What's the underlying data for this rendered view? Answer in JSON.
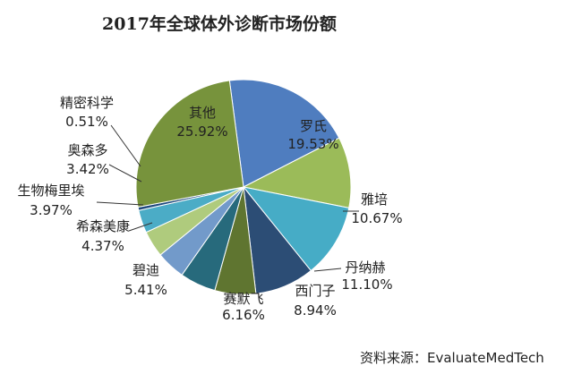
{
  "chart_data": {
    "type": "pie",
    "title": "2017年全球体外诊断市场份额",
    "start_angle_deg": 97.5,
    "direction": "clockwise",
    "slices": [
      {
        "name": "罗氏",
        "value": 19.53,
        "label": "19.53%",
        "color": "#4F7DBF"
      },
      {
        "name": "雅培",
        "value": 10.67,
        "label": "10.67%",
        "color": "#9BBB59"
      },
      {
        "name": "丹纳赫",
        "value": 11.1,
        "label": "11.10%",
        "color": "#46ACC6"
      },
      {
        "name": "西门子",
        "value": 8.94,
        "label": "8.94%",
        "color": "#2C4D75"
      },
      {
        "name": "赛默飞",
        "value": 6.16,
        "label": "6.16%",
        "color": "#5F7530"
      },
      {
        "name": "碧迪",
        "value": 5.41,
        "label": "5.41%",
        "color": "#276A7C"
      },
      {
        "name": "希森美康",
        "value": 4.37,
        "label": "4.37%",
        "color": "#729ACA"
      },
      {
        "name": "生物梅里埃",
        "value": 3.97,
        "label": "3.97%",
        "color": "#AFCB7D"
      },
      {
        "name": "奥森多",
        "value": 3.42,
        "label": "3.42%",
        "color": "#4BACC6"
      },
      {
        "name": "精密科学",
        "value": 0.51,
        "label": "0.51%",
        "color": "#1F497D"
      },
      {
        "name": "其他",
        "value": 25.92,
        "label": "25.92%",
        "color": "#77933C"
      }
    ]
  },
  "source_note": "资料来源：EvaluateMedTech"
}
